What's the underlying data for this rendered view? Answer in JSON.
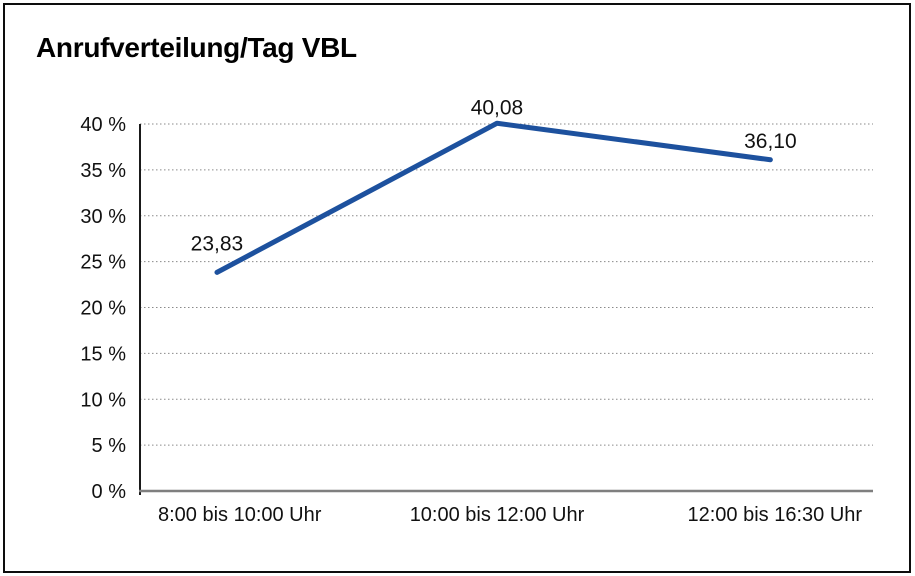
{
  "window": {
    "background": "#ffffff",
    "border_color": "#0d0d0d"
  },
  "chart_data": {
    "type": "line",
    "title": "Anrufverteilung/Tag VBL",
    "categories": [
      "8:00 bis 10:00 Uhr",
      "10:00 bis 12:00 Uhr",
      "12:00 bis 16:30 Uhr"
    ],
    "values": [
      23.83,
      40.08,
      36.1
    ],
    "value_labels": [
      "23,83",
      "40,08",
      "36,10"
    ],
    "xlabel": "",
    "ylabel": "",
    "ylim": [
      0,
      40
    ],
    "ytick_step": 5,
    "ytick_labels": [
      "0 %",
      "5 %",
      "10 %",
      "15 %",
      "20 %",
      "25 %",
      "30 %",
      "35 %",
      "40 %"
    ],
    "grid": true,
    "gridline_style": "dotted",
    "legend": "none",
    "line_color": "#1d519e",
    "grid_color": "#8a8a8a",
    "x_axis_color": "#7f7f7f",
    "y_axis_color": "#1a1a1a",
    "text_color": "#111111"
  }
}
